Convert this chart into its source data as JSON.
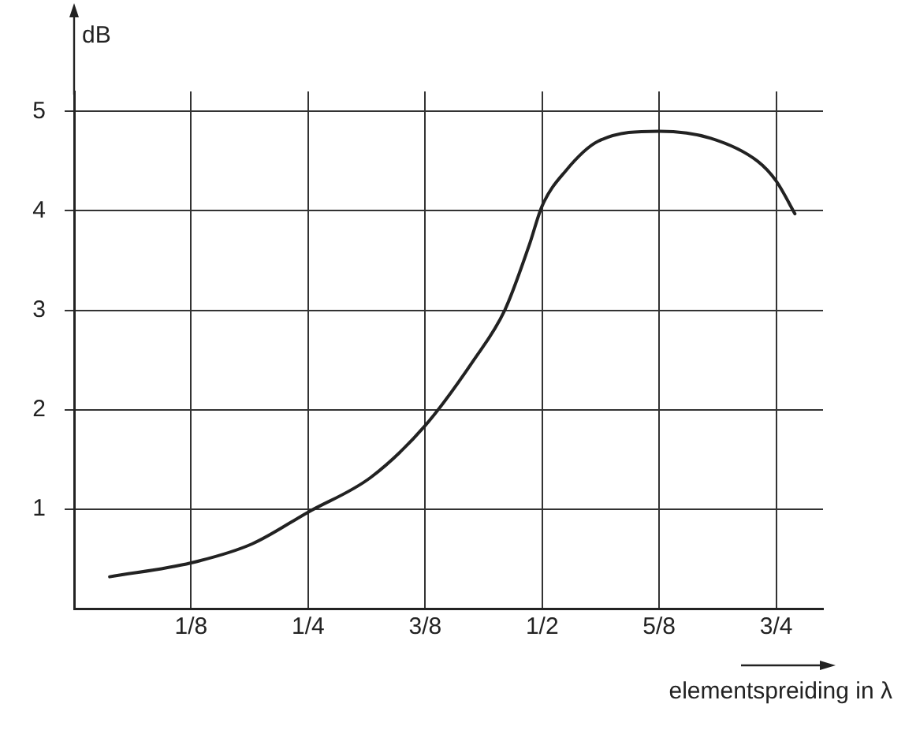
{
  "chart_data": {
    "type": "line",
    "xlabel": "elementspreiding in λ",
    "ylabel": "dB",
    "x": [
      0.038,
      0.125,
      0.19,
      0.25,
      0.317,
      0.375,
      0.427,
      0.46,
      0.486,
      0.5,
      0.525,
      0.56,
      0.625,
      0.68,
      0.73,
      0.75,
      0.77
    ],
    "series": [
      {
        "color": "#222222",
        "values": [
          0.32,
          0.46,
          0.65,
          0.97,
          1.32,
          1.84,
          2.5,
          3.0,
          3.65,
          4.05,
          4.4,
          4.7,
          4.8,
          4.73,
          4.5,
          4.3,
          3.97
        ]
      }
    ],
    "xlim": [
      0,
      0.8
    ],
    "xticks": [
      {
        "value": 0.125,
        "label": "1/8"
      },
      {
        "value": 0.25,
        "label": "1/4"
      },
      {
        "value": 0.375,
        "label": "3/8"
      },
      {
        "value": 0.5,
        "label": "1/2"
      },
      {
        "value": 0.625,
        "label": "5/8"
      },
      {
        "value": 0.75,
        "label": "3/4"
      }
    ],
    "ylim": [
      0,
      5.2
    ],
    "yticks": [
      1,
      2,
      3,
      4,
      5
    ],
    "grid": true,
    "legend": false,
    "marker": "none",
    "line_style": "solid"
  }
}
